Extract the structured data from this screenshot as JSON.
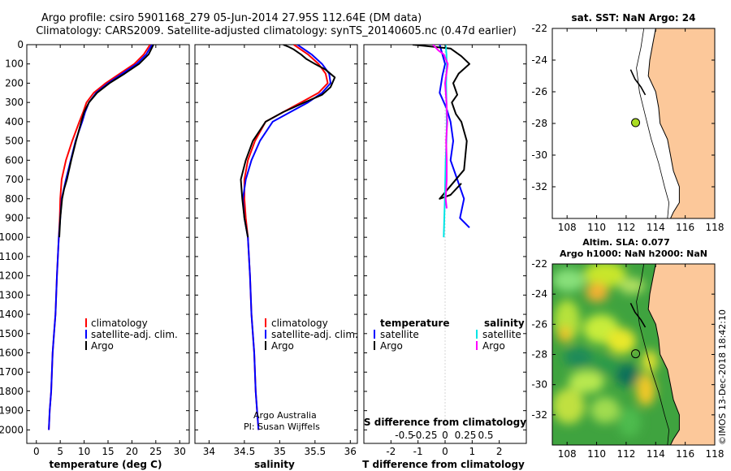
{
  "header": {
    "line1": "Argo profile: csiro 5901168_279 05-Jun-2014 27.95S 112.64E (DM data)",
    "line2": "Climatology: CARS2009. Satellite-adjusted climatology: synTS_20140605.nc (0.47d earlier)"
  },
  "colors": {
    "clim": "#ff0000",
    "sat": "#0000ff",
    "argo": "#000000",
    "sat_sal": "#00e5e5",
    "argo_sal": "#ff00ff",
    "land": "#fcc89a",
    "marker": "#aadd22"
  },
  "chart_data": [
    {
      "type": "line",
      "title": "",
      "xlabel": "temperature (deg C)",
      "xlim": [
        -2,
        32
      ],
      "ylim": [
        2070,
        0
      ],
      "xticks": [
        "0",
        "5",
        "10",
        "15",
        "20",
        "25",
        "30"
      ],
      "yticks": [
        "0",
        "100",
        "200",
        "300",
        "400",
        "500",
        "600",
        "700",
        "800",
        "900",
        "1000",
        "1100",
        "1200",
        "1300",
        "1400",
        "1500",
        "1600",
        "1700",
        "1800",
        "1900",
        "2000"
      ],
      "series": [
        {
          "name": "climatology",
          "color": "#ff0000",
          "x": [
            23.8,
            22.5,
            20.5,
            17.5,
            14.5,
            12.0,
            10.5,
            9.8,
            9.0,
            7.5,
            6.2,
            5.3,
            5.0,
            4.9,
            4.7,
            4.3,
            4.0,
            3.7,
            3.4,
            3.1,
            2.8,
            2.6
          ],
          "y": [
            0,
            50,
            100,
            150,
            200,
            250,
            300,
            350,
            400,
            500,
            600,
            700,
            800,
            900,
            1000,
            1200,
            1400,
            1500,
            1600,
            1800,
            1900,
            2000
          ]
        },
        {
          "name": "satellite-adj. clim.",
          "color": "#0000ff",
          "x": [
            24.2,
            23.0,
            21.0,
            18.0,
            15.0,
            12.5,
            11.0,
            10.2,
            9.6,
            8.2,
            7.2,
            6.2,
            5.3,
            5.0,
            4.7,
            4.3,
            4.0,
            3.7,
            3.4,
            3.1,
            2.8,
            2.6
          ],
          "y": [
            0,
            50,
            100,
            150,
            200,
            250,
            300,
            350,
            400,
            500,
            600,
            700,
            800,
            900,
            1000,
            1200,
            1400,
            1500,
            1600,
            1800,
            1900,
            2000
          ]
        },
        {
          "name": "Argo",
          "color": "#000000",
          "x": [
            24.5,
            23.5,
            21.5,
            18.5,
            15.3,
            12.7,
            11.0,
            10.0,
            9.4,
            8.3,
            7.3,
            6.4,
            5.8,
            5.4,
            5.0,
            4.8
          ],
          "y": [
            0,
            50,
            100,
            150,
            200,
            250,
            300,
            350,
            400,
            500,
            600,
            700,
            750,
            800,
            900,
            1000
          ]
        }
      ],
      "legend": [
        "climatology",
        "satellite-adj. clim.",
        "Argo"
      ]
    },
    {
      "type": "line",
      "xlabel": "salinity",
      "xlim": [
        33.8,
        36.1
      ],
      "ylim": [
        2070,
        0
      ],
      "xticks": [
        "34",
        "34.5",
        "35",
        "35.5",
        "36"
      ],
      "series": [
        {
          "name": "climatology",
          "color": "#ff0000",
          "x": [
            35.2,
            35.4,
            35.55,
            35.65,
            35.68,
            35.55,
            35.3,
            35.05,
            34.8,
            34.65,
            34.55,
            34.5,
            34.5,
            34.52,
            34.55,
            34.58,
            34.6,
            34.62,
            34.64,
            34.66,
            34.68,
            34.7
          ],
          "y": [
            0,
            50,
            100,
            150,
            200,
            250,
            300,
            350,
            400,
            500,
            600,
            700,
            800,
            900,
            1000,
            1200,
            1400,
            1500,
            1600,
            1800,
            1900,
            2000
          ]
        },
        {
          "name": "satellite-adj. clim.",
          "color": "#0000ff",
          "x": [
            35.25,
            35.45,
            35.6,
            35.7,
            35.72,
            35.6,
            35.4,
            35.15,
            34.9,
            34.72,
            34.6,
            34.52,
            34.48,
            34.5,
            34.55,
            34.58,
            34.6,
            34.62,
            34.64,
            34.66,
            34.68,
            34.7
          ],
          "y": [
            0,
            50,
            100,
            150,
            200,
            250,
            300,
            350,
            400,
            500,
            600,
            700,
            800,
            900,
            1000,
            1200,
            1400,
            1500,
            1600,
            1800,
            1900,
            2000
          ]
        },
        {
          "name": "Argo",
          "color": "#000000",
          "x": [
            35.05,
            35.12,
            35.2,
            35.3,
            35.38,
            35.5,
            35.65,
            35.78,
            35.72,
            35.6,
            35.35,
            35.05,
            34.8,
            34.62,
            34.52,
            34.45,
            34.47,
            34.5,
            34.55
          ],
          "y": [
            0,
            10,
            25,
            50,
            75,
            100,
            130,
            170,
            220,
            260,
            300,
            350,
            400,
            500,
            600,
            700,
            800,
            900,
            1000
          ]
        }
      ],
      "legend": [
        "climatology",
        "satellite-adj. clim.",
        "Argo"
      ],
      "annotations": [
        "Argo Australia",
        "PI: Susan Wijffels"
      ]
    },
    {
      "type": "line",
      "xlabel": "T difference from climatology",
      "xlabel_top": "S difference from climatology",
      "xlim": [
        -3,
        3
      ],
      "ylim": [
        2070,
        0
      ],
      "xticks": [
        "-2",
        "-1",
        "0",
        "1",
        "2"
      ],
      "xticks_top": [
        "-0.5",
        "-0.25",
        "0",
        "0.25",
        "0.5"
      ],
      "series": [
        {
          "name": "temperature satellite",
          "color": "#0000ff",
          "x": [
            -0.2,
            0.0,
            -0.1,
            -0.2,
            0.05,
            0.2,
            0.3,
            0.2,
            0.45,
            0.7,
            0.55,
            0.9
          ],
          "y": [
            0,
            100,
            160,
            250,
            330,
            400,
            500,
            600,
            700,
            800,
            900,
            950
          ]
        },
        {
          "name": "temperature Argo",
          "color": "#000000",
          "x": [
            -1.2,
            0.2,
            0.6,
            0.9,
            0.5,
            0.3,
            0.45,
            0.25,
            0.4,
            0.6,
            0.8,
            0.7,
            -0.2,
            0.2,
            0.6
          ],
          "y": [
            0,
            20,
            60,
            100,
            150,
            200,
            260,
            300,
            360,
            400,
            500,
            650,
            800,
            780,
            720
          ]
        },
        {
          "name": "salinity satellite",
          "color": "#00e5e5",
          "x": [
            0.02,
            0.05,
            0.06,
            0.04,
            0.05,
            0.06,
            0.05,
            0.02,
            -0.01,
            -0.05
          ],
          "y": [
            0,
            50,
            100,
            200,
            300,
            400,
            500,
            600,
            800,
            1000
          ]
        },
        {
          "name": "salinity Argo",
          "color": "#ff00ff",
          "x": [
            -0.45,
            -0.25,
            -0.05,
            0.1,
            0.0,
            0.05,
            0.08,
            0.04,
            0.06,
            0.06,
            0.02,
            0.06
          ],
          "y": [
            0,
            30,
            50,
            100,
            200,
            300,
            400,
            500,
            600,
            700,
            800,
            850
          ]
        }
      ],
      "legend_headers": [
        "temperature",
        "salinity"
      ],
      "legend": [
        "satellite",
        "Argo",
        "satellite",
        "Argo"
      ]
    },
    {
      "type": "map",
      "title": "sat. SST: NaN Argo: 24",
      "xlim": [
        107,
        118
      ],
      "ylim": [
        -34,
        -22
      ],
      "xticks": [
        "108",
        "110",
        "112",
        "114",
        "116",
        "118"
      ],
      "yticks": [
        "-22",
        "-24",
        "-26",
        "-28",
        "-30",
        "-32"
      ],
      "marker": {
        "lon": 112.64,
        "lat": -27.95
      }
    },
    {
      "type": "heatmap",
      "title_line1": "Altim. SLA: 0.077",
      "title_line2": "Argo h1000: NaN h2000: NaN",
      "xlim": [
        107,
        118
      ],
      "ylim": [
        -34,
        -22
      ],
      "xticks": [
        "108",
        "110",
        "112",
        "114",
        "116",
        "118"
      ],
      "yticks": [
        "-22",
        "-24",
        "-26",
        "-28",
        "-30",
        "-32"
      ],
      "marker": {
        "lon": 112.64,
        "lat": -27.95
      },
      "side_text": "©IMOS 13-Dec-2018 18:42:10"
    }
  ]
}
